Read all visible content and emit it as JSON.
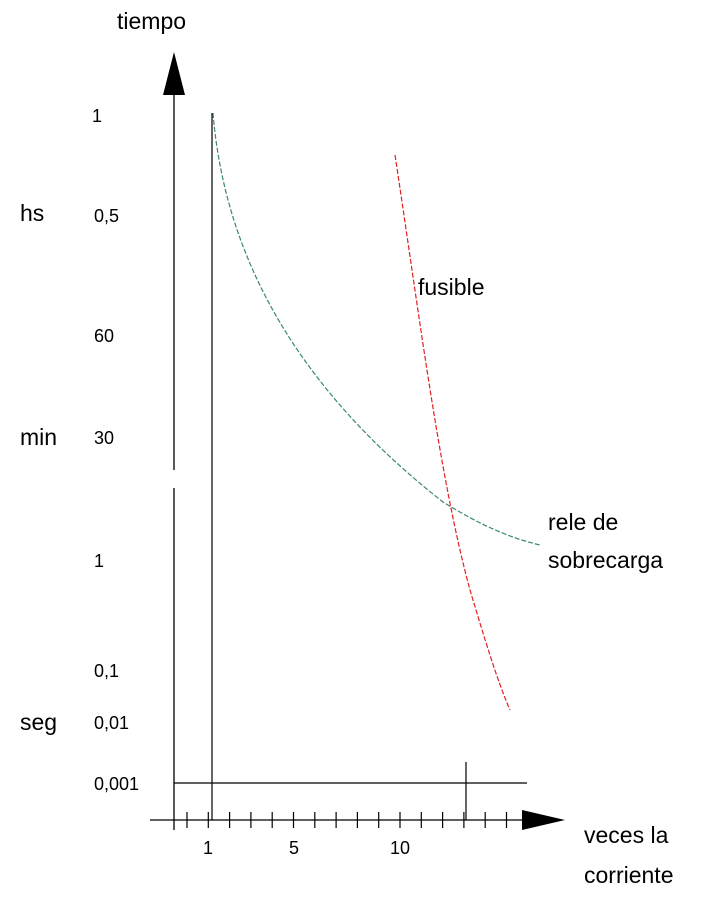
{
  "axis_title_y": "tiempo",
  "axis_title_x": [
    "veces la",
    "corriente"
  ],
  "unit_labels": [
    "hs",
    "min",
    "seg"
  ],
  "y_labels": [
    "1",
    "0,5",
    "60",
    "30",
    "1",
    "0,1",
    "0,01",
    "0,001"
  ],
  "x_labels": [
    "1",
    "5",
    "10"
  ],
  "curve_labels": {
    "fuse": "fusible",
    "relay": [
      "rele de",
      "sobrecarga"
    ]
  }
}
